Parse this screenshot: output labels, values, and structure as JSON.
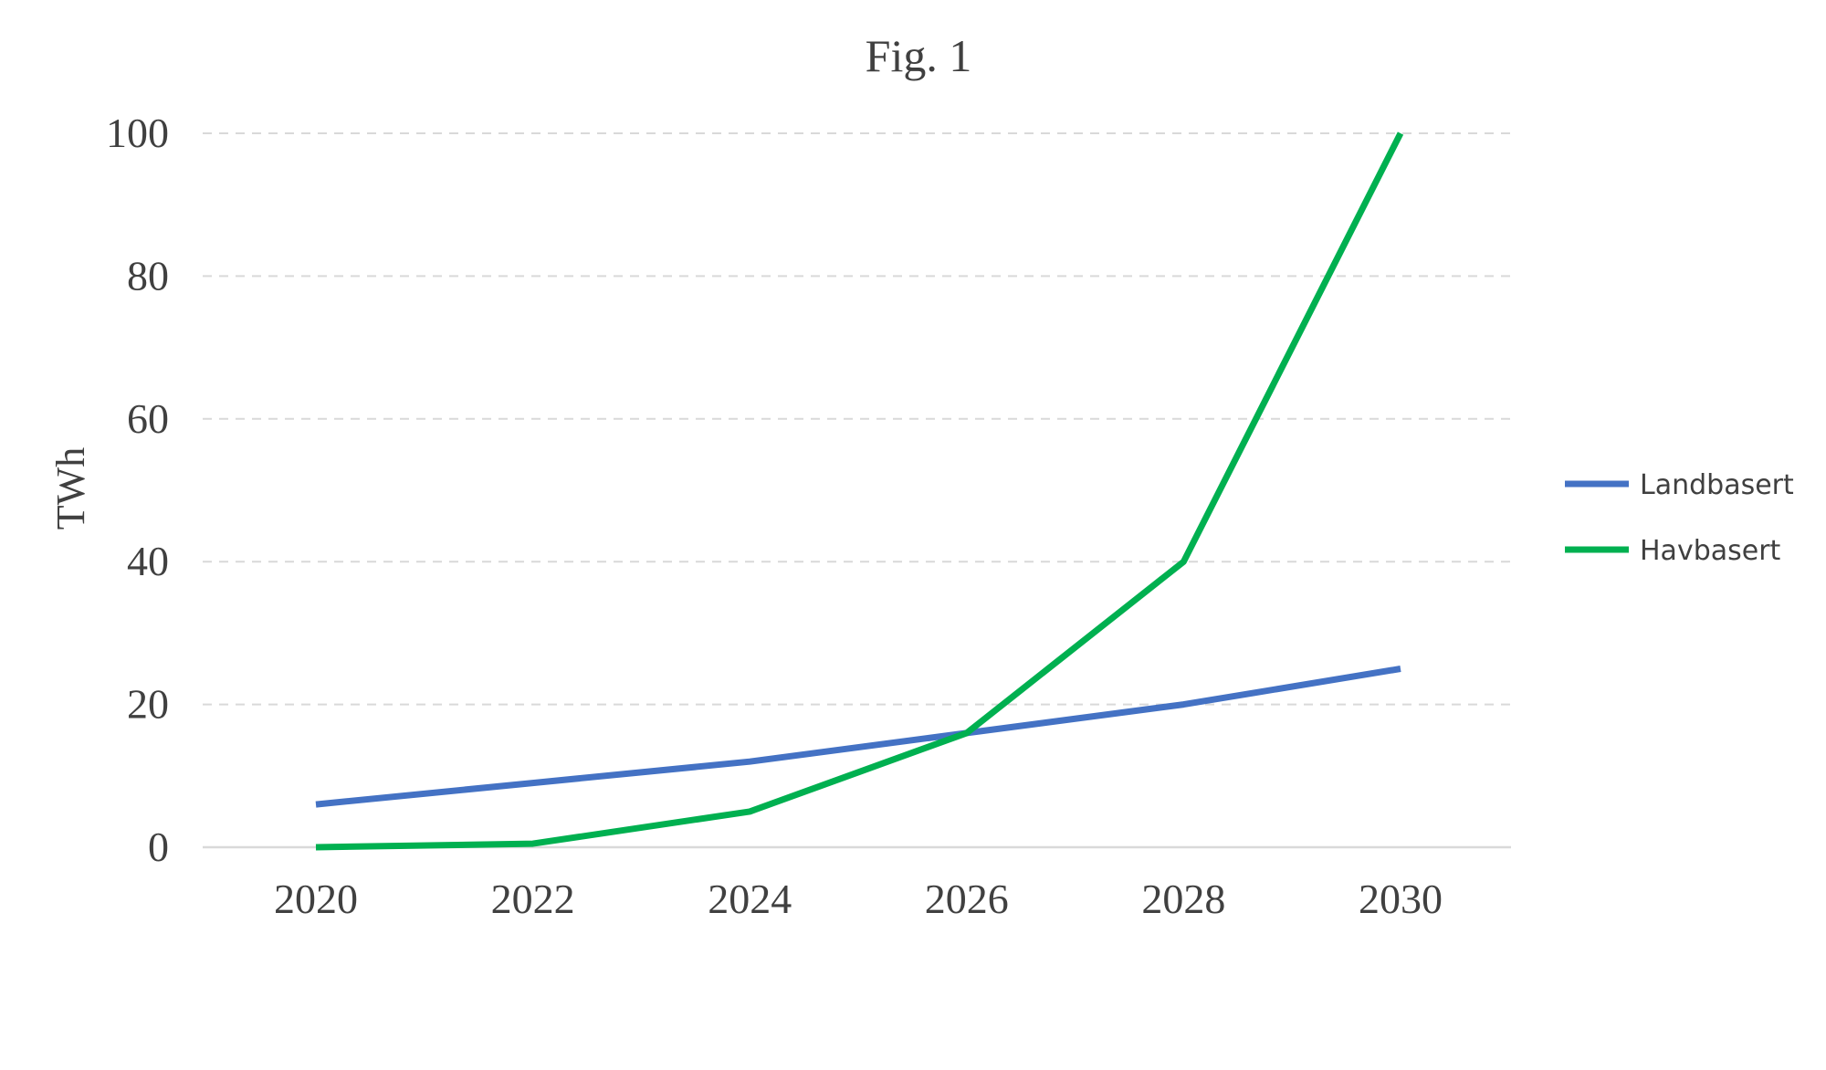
{
  "chart_data": {
    "type": "line",
    "title": "Fig. 1",
    "xlabel": "",
    "ylabel": "TWh",
    "x": [
      2020,
      2022,
      2024,
      2026,
      2028,
      2030
    ],
    "ylim": [
      0,
      100
    ],
    "yticks": [
      0,
      20,
      40,
      60,
      80,
      100
    ],
    "grid": true,
    "legend_position": "right",
    "series": [
      {
        "name": "Landbasert",
        "color": "#4472c4",
        "values": [
          6,
          9,
          12,
          16,
          20,
          25
        ]
      },
      {
        "name": "Havbasert",
        "color": "#00b050",
        "values": [
          0,
          0.5,
          5,
          16,
          40,
          100
        ]
      }
    ]
  }
}
